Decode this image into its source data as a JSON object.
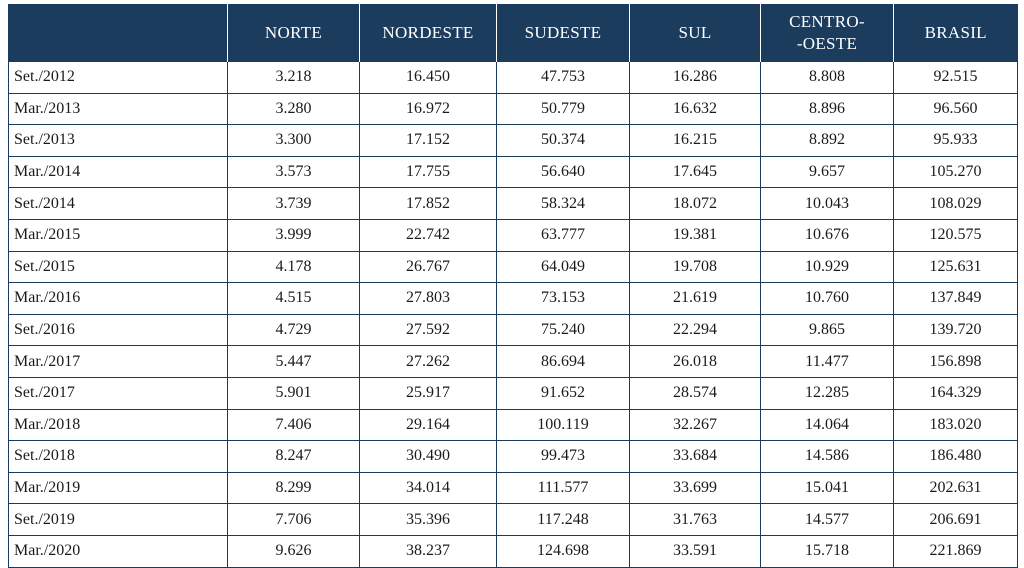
{
  "header": {
    "columns": [
      "",
      "NORTE",
      "NORDESTE",
      "SUDESTE",
      "SUL",
      "CENTRO-\n-OESTE",
      "BRASIL"
    ]
  },
  "rows": [
    {
      "period": "Set./2012",
      "values": [
        "3.218",
        "16.450",
        "47.753",
        "16.286",
        "8.808",
        "92.515"
      ]
    },
    {
      "period": "Mar./2013",
      "values": [
        "3.280",
        "16.972",
        "50.779",
        "16.632",
        "8.896",
        "96.560"
      ]
    },
    {
      "period": "Set./2013",
      "values": [
        "3.300",
        "17.152",
        "50.374",
        "16.215",
        "8.892",
        "95.933"
      ]
    },
    {
      "period": "Mar./2014",
      "values": [
        "3.573",
        "17.755",
        "56.640",
        "17.645",
        "9.657",
        "105.270"
      ]
    },
    {
      "period": "Set./2014",
      "values": [
        "3.739",
        "17.852",
        "58.324",
        "18.072",
        "10.043",
        "108.029"
      ]
    },
    {
      "period": "Mar./2015",
      "values": [
        "3.999",
        "22.742",
        "63.777",
        "19.381",
        "10.676",
        "120.575"
      ]
    },
    {
      "period": "Set./2015",
      "values": [
        "4.178",
        "26.767",
        "64.049",
        "19.708",
        "10.929",
        "125.631"
      ]
    },
    {
      "period": "Mar./2016",
      "values": [
        "4.515",
        "27.803",
        "73.153",
        "21.619",
        "10.760",
        "137.849"
      ]
    },
    {
      "period": "Set./2016",
      "values": [
        "4.729",
        "27.592",
        "75.240",
        "22.294",
        "9.865",
        "139.720"
      ]
    },
    {
      "period": "Mar./2017",
      "values": [
        "5.447",
        "27.262",
        "86.694",
        "26.018",
        "11.477",
        "156.898"
      ]
    },
    {
      "period": "Set./2017",
      "values": [
        "5.901",
        "25.917",
        "91.652",
        "28.574",
        "12.285",
        "164.329"
      ]
    },
    {
      "period": "Mar./2018",
      "values": [
        "7.406",
        "29.164",
        "100.119",
        "32.267",
        "14.064",
        "183.020"
      ]
    },
    {
      "period": "Set./2018",
      "values": [
        "8.247",
        "30.490",
        "99.473",
        "33.684",
        "14.586",
        "186.480"
      ]
    },
    {
      "period": "Mar./2019",
      "values": [
        "8.299",
        "34.014",
        "111.577",
        "33.699",
        "15.041",
        "202.631"
      ]
    },
    {
      "period": "Set./2019",
      "values": [
        "7.706",
        "35.396",
        "117.248",
        "31.763",
        "14.577",
        "206.691"
      ]
    },
    {
      "period": "Mar./2020",
      "values": [
        "9.626",
        "38.237",
        "124.698",
        "33.591",
        "15.718",
        "221.869"
      ]
    }
  ],
  "colors": {
    "header_bg": "#1b3c5c",
    "header_text": "#ffffff",
    "border": "#1b3c5c"
  }
}
